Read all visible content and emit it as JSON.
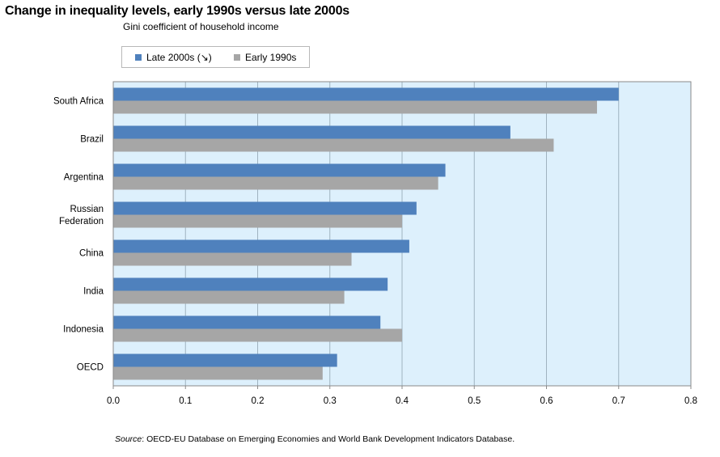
{
  "title": "Change in inequality levels, early 1990s versus late 2000s",
  "subtitle": "Gini coefficient of household income",
  "legend": [
    {
      "label": "Late 2000s (↘)",
      "color": "#4f81bd"
    },
    {
      "label": "Early 1990s",
      "color": "#a6a6a6"
    }
  ],
  "source": {
    "prefix": "Source",
    "text": ": OECD-EU Database on Emerging Economies and World Bank Development Indicators Database."
  },
  "colors": {
    "plot_background": "#ddf0fc",
    "gridline": "#9fb3c0",
    "late": "#4f81bd",
    "early": "#a6a6a6"
  },
  "chart_data": {
    "type": "bar",
    "orientation": "horizontal",
    "title": "Change in inequality levels, early 1990s versus late 2000s",
    "subtitle": "Gini coefficient of household income",
    "categories": [
      [
        "South Africa"
      ],
      [
        "Brazil"
      ],
      [
        "Argentina"
      ],
      [
        "Russian",
        "Federation"
      ],
      [
        "China"
      ],
      [
        "India"
      ],
      [
        "Indonesia"
      ],
      [
        "OECD"
      ]
    ],
    "series": [
      {
        "name": "Late 2000s (↘)",
        "values": [
          0.7,
          0.55,
          0.46,
          0.42,
          0.41,
          0.38,
          0.37,
          0.31
        ]
      },
      {
        "name": "Early 1990s",
        "values": [
          0.67,
          0.61,
          0.45,
          0.4,
          0.33,
          0.32,
          0.4,
          0.29
        ]
      }
    ],
    "xlim": [
      0,
      0.8
    ],
    "xticks": [
      "0.0",
      "0.1",
      "0.2",
      "0.3",
      "0.4",
      "0.5",
      "0.6",
      "0.7",
      "0.8"
    ],
    "xlabel": "",
    "ylabel": "",
    "grid": true,
    "legend_position": "top-left"
  }
}
